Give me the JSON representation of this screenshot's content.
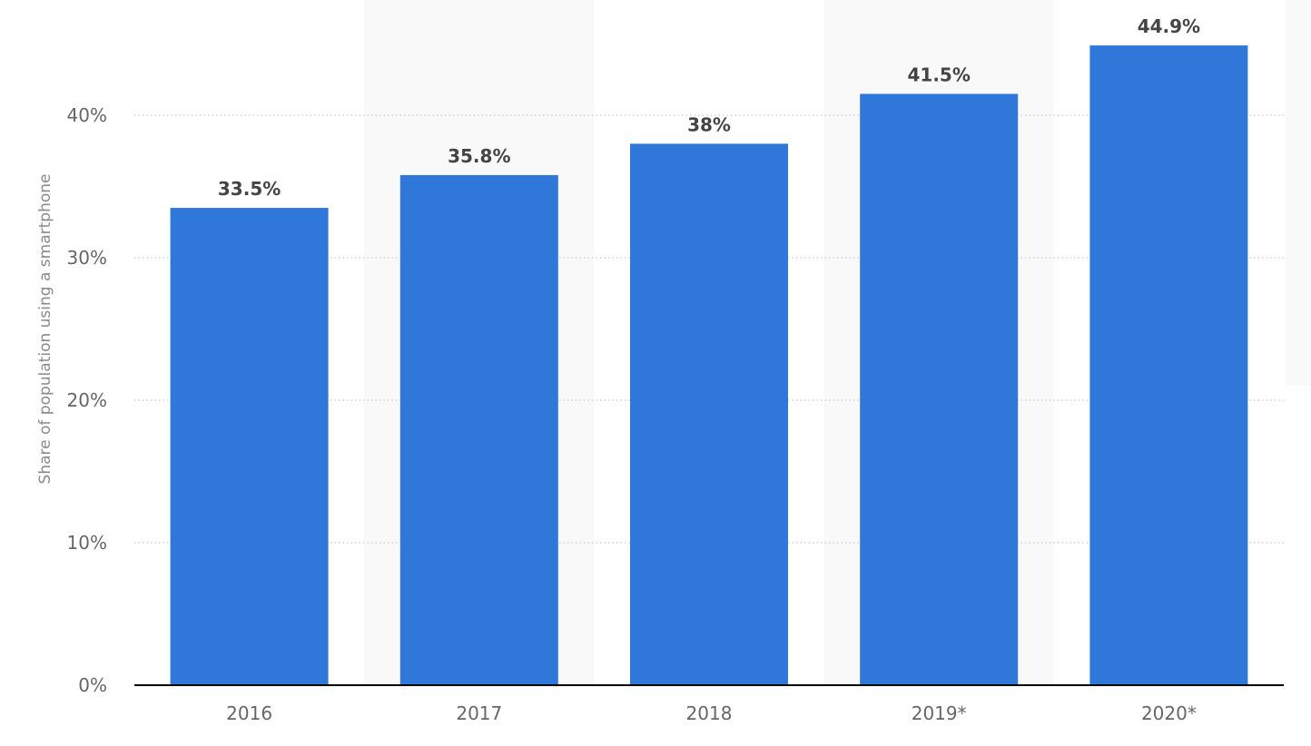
{
  "chart_data": {
    "type": "bar",
    "title": "",
    "xlabel": "",
    "ylabel": "Share of population using a smartphone",
    "categories": [
      "2016",
      "2017",
      "2018",
      "2019*",
      "2020*"
    ],
    "values": [
      33.5,
      35.8,
      38,
      41.5,
      44.9
    ],
    "data_labels": [
      "33.5%",
      "35.8%",
      "38%",
      "41.5%",
      "44.9%"
    ],
    "ylim": [
      0,
      45
    ],
    "yticks": [
      0,
      10,
      20,
      30,
      40
    ],
    "ytick_labels": [
      "0%",
      "10%",
      "20%",
      "30%",
      "40%"
    ],
    "grid": true,
    "legend": "none",
    "bar_color": "#2f78d9",
    "band_color": "#f9f9fa"
  }
}
